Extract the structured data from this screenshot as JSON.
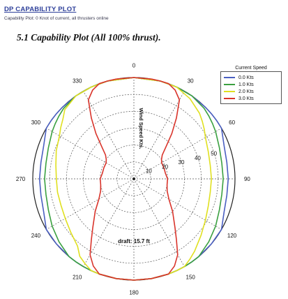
{
  "header": {
    "title": "DP CAPABILITY PLOT",
    "subtitle": "Capability Plot: 0 Knot of current, all thrusters online"
  },
  "section_title": "5.1  Capability Plot (All 100% thrust).",
  "chart_data": {
    "type": "polar",
    "angle_unit": "degrees",
    "angle_ticks": [
      0,
      30,
      60,
      90,
      120,
      150,
      180,
      210,
      240,
      270,
      300,
      330
    ],
    "angle_tick_labels": [
      "0",
      "30",
      "60",
      "90",
      "120",
      "150",
      "180",
      "210",
      "240",
      "270",
      "300",
      "330"
    ],
    "radial_label": "Wind Speed Kts.",
    "radial_ticks": [
      10,
      20,
      30,
      40,
      50,
      60
    ],
    "radial_tick_labels": [
      "10",
      "20",
      "30",
      "40",
      "50"
    ],
    "rlim": [
      0,
      60
    ],
    "grid": true,
    "annotation": "draft: 15.7 ft",
    "legend": {
      "title": "Current Speed",
      "placement": "top-right"
    },
    "series": [
      {
        "name": "0.0 Kts",
        "color": "#4a5fc1",
        "theta": [
          0,
          15,
          25,
          35,
          45,
          50,
          55,
          60,
          70,
          80,
          90,
          100,
          110,
          120,
          130,
          140,
          145,
          150,
          155,
          160,
          170,
          180,
          190,
          200,
          205,
          210,
          215,
          220,
          230,
          240,
          250,
          260,
          270,
          280,
          290,
          300,
          305,
          310,
          315,
          325,
          335,
          345
        ],
        "r": [
          60,
          60,
          60,
          60,
          60,
          60,
          60,
          60,
          57,
          56,
          56,
          56,
          57,
          60,
          60,
          60,
          60,
          60,
          60,
          60,
          60,
          60,
          60,
          60,
          60,
          60,
          60,
          60,
          60,
          60,
          57,
          56,
          56,
          56,
          57,
          60,
          60,
          60,
          60,
          60,
          60,
          60
        ]
      },
      {
        "name": "1.0 Kts",
        "color": "#3aa040",
        "theta": [
          0,
          15,
          25,
          35,
          45,
          50,
          55,
          60,
          70,
          80,
          90,
          100,
          110,
          120,
          130,
          140,
          145,
          150,
          155,
          160,
          170,
          180,
          190,
          200,
          205,
          210,
          215,
          220,
          230,
          240,
          250,
          260,
          270,
          280,
          290,
          300,
          305,
          310,
          315,
          325,
          335,
          345
        ],
        "r": [
          60,
          60,
          60,
          60,
          59,
          58,
          57,
          56,
          54,
          53,
          53,
          53,
          54,
          56,
          58,
          60,
          60,
          60,
          60,
          60,
          60,
          60,
          60,
          60,
          60,
          60,
          60,
          60,
          58,
          56,
          54,
          53,
          53,
          53,
          54,
          56,
          57,
          58,
          59,
          60,
          60,
          60
        ]
      },
      {
        "name": "2.0 Kts",
        "color": "#e0e020",
        "theta": [
          0,
          15,
          25,
          35,
          45,
          50,
          55,
          60,
          70,
          80,
          90,
          100,
          110,
          120,
          130,
          140,
          145,
          150,
          155,
          160,
          170,
          180,
          190,
          200,
          205,
          210,
          215,
          220,
          230,
          240,
          250,
          260,
          270,
          280,
          290,
          300,
          305,
          310,
          315,
          325,
          335,
          345
        ],
        "r": [
          60,
          60,
          60,
          58,
          55,
          53,
          51,
          49,
          47,
          46,
          46,
          46,
          47,
          49,
          52,
          56,
          58,
          60,
          60,
          60,
          60,
          60,
          60,
          60,
          60,
          58,
          56,
          52,
          49,
          47,
          46,
          46,
          46,
          47,
          49,
          51,
          53,
          55,
          58,
          60,
          60,
          60
        ]
      },
      {
        "name": "3.0 Kts",
        "color": "#d9342b",
        "theta": [
          0,
          10,
          15,
          20,
          25,
          30,
          35,
          40,
          45,
          50,
          55,
          60,
          70,
          80,
          90,
          100,
          110,
          120,
          130,
          140,
          145,
          150,
          155,
          160,
          170,
          180,
          190,
          200,
          205,
          210,
          215,
          220,
          230,
          240,
          250,
          260,
          270,
          280,
          290,
          300,
          305,
          310,
          315,
          320,
          325,
          330,
          335,
          340,
          345,
          350
        ],
        "r": [
          60,
          60,
          60,
          60,
          58,
          54,
          44,
          35,
          27,
          22,
          20,
          19,
          19,
          19,
          20,
          20,
          21,
          24,
          30,
          38,
          44,
          52,
          57,
          60,
          60,
          60,
          60,
          60,
          57,
          52,
          44,
          38,
          30,
          24,
          21,
          20,
          20,
          19,
          19,
          19,
          20,
          22,
          27,
          35,
          44,
          54,
          58,
          60,
          60,
          60
        ]
      }
    ]
  }
}
